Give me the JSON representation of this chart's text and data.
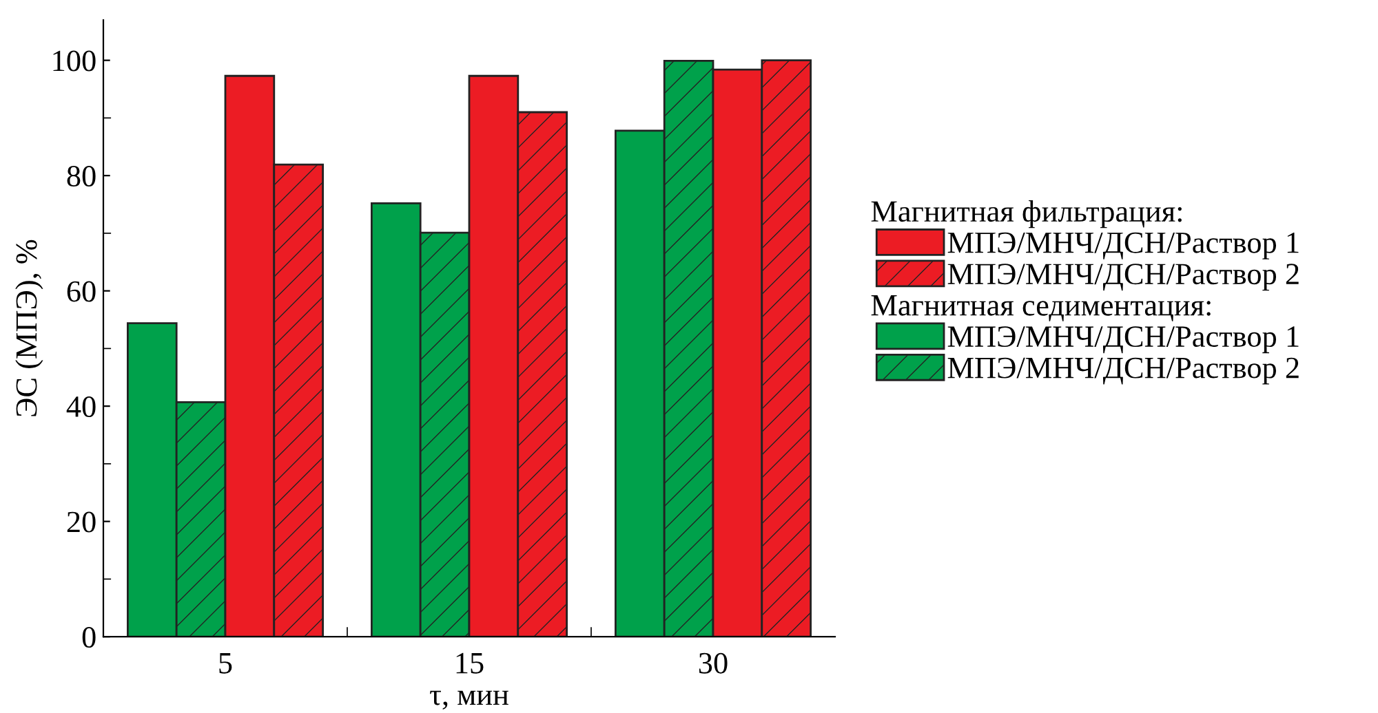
{
  "chart_data": {
    "type": "bar",
    "xlabel": "τ, мин",
    "ylabel": "ЭС (МПЭ), %",
    "categories": [
      "5",
      "15",
      "30"
    ],
    "series": [
      {
        "name": "МПЭ/МНЧ/ДСН/Раствор 1",
        "color": "#00a14b",
        "values": [
          54.4,
          75.2,
          87.8
        ]
      },
      {
        "name": "МПЭ/МНЧ/ДСН/Раствор 2",
        "color": "#00a14b",
        "values": [
          40.7,
          70.1,
          99.9
        ]
      },
      {
        "name": "МПЭ/МНЧ/ДСН/Раствор 1",
        "color": "#ec1c24",
        "values": [
          97.3,
          97.3,
          98.4
        ]
      },
      {
        "name": "МПЭ/МНЧ/ДСН/Раствор 2",
        "color": "#ec1c24",
        "values": [
          81.9,
          91.0,
          100
        ]
      }
    ],
    "annotations": [
      "Магнитная фильтрация:",
      "Магнитная седиментация:"
    ],
    "ylim": [
      0,
      107
    ],
    "yticks": [
      0,
      20,
      40,
      60,
      80,
      100
    ],
    "grid": false,
    "legend": "right"
  }
}
